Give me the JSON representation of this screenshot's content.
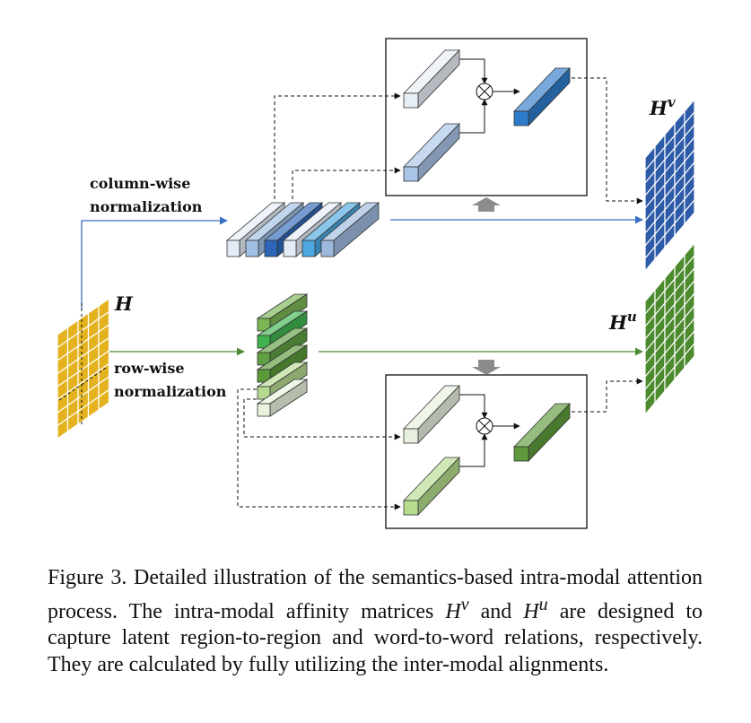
{
  "labels": {
    "column_wise_line1": "column-wise",
    "column_wise_line2": "normalization",
    "row_wise_line1": "row-wise",
    "row_wise_line2": "normalization",
    "h": "H",
    "hv_base": "H",
    "hv_sup": "v",
    "hu_base": "H",
    "hu_sup": "u",
    "multiply_symbol": "⊗"
  },
  "colors": {
    "yellow_matrix": "#E3B21E",
    "blue_matrix": "#2D5BA8",
    "green_matrix": "#4C8A2E",
    "blue_arrow": "#3B6FC2",
    "green_arrow": "#4E8A34",
    "gray_arrow": "#8C8C8C"
  },
  "caption": "Figure 3. Detailed illustration of the semantics-based intra-modal attention process. The intra-modal affinity matrices H^v and H^u are designed to capture latent region-to-region and word-to-word relations, respectively. They are calculated by fully utilizing the inter-modal alignments.",
  "caption_parts": {
    "p1": "Figure 3.  Detailed illustration of the semantics-based intra-modal attention process.  The intra-modal affinity matrices ",
    "hv_base": "H",
    "hv_sup": "v",
    "p2": " and ",
    "hu_base": "H",
    "hu_sup": "u",
    "p3": " are designed to capture latent region-to-region and word-to-word relations, respectively.  They are calculated by fully utilizing the inter-modal alignments."
  }
}
